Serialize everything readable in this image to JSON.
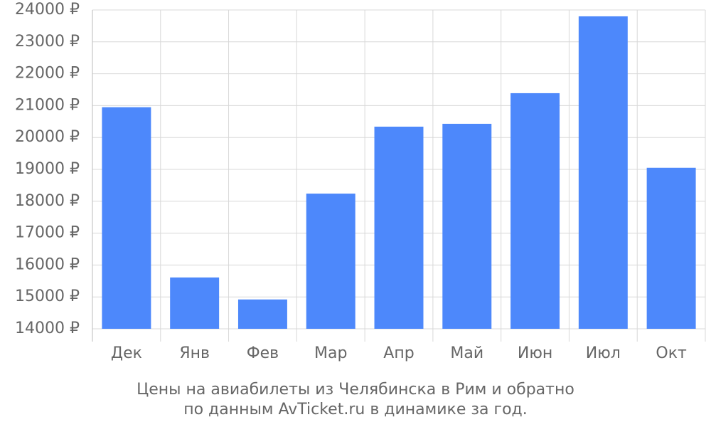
{
  "chart_data": {
    "type": "bar",
    "title": [
      "Цены на авиабилеты из Челябинска в Рим и обратно",
      "по данным AvTicket.ru в динамике за год."
    ],
    "categories": [
      "Дек",
      "Янв",
      "Фев",
      "Мар",
      "Апр",
      "Май",
      "Июн",
      "Июл",
      "Окт"
    ],
    "values": [
      20950,
      15610,
      14920,
      18240,
      20340,
      20430,
      21390,
      23800,
      19050
    ],
    "color": "#4d88fb",
    "ylim": [
      14000,
      24000
    ],
    "yticks": [
      {
        "value": 14000,
        "label": "14000 ₽"
      },
      {
        "value": 15000,
        "label": "15000 ₽"
      },
      {
        "value": 16000,
        "label": "16000 ₽"
      },
      {
        "value": 17000,
        "label": "17000 ₽"
      },
      {
        "value": 18000,
        "label": "18000 ₽"
      },
      {
        "value": 19000,
        "label": "19000 ₽"
      },
      {
        "value": 20000,
        "label": "20000 ₽"
      },
      {
        "value": 21000,
        "label": "21000 ₽"
      },
      {
        "value": 22000,
        "label": "22000 ₽"
      },
      {
        "value": 23000,
        "label": "23000 ₽"
      },
      {
        "value": 24000,
        "label": "24000 ₽"
      }
    ],
    "grid": true
  }
}
